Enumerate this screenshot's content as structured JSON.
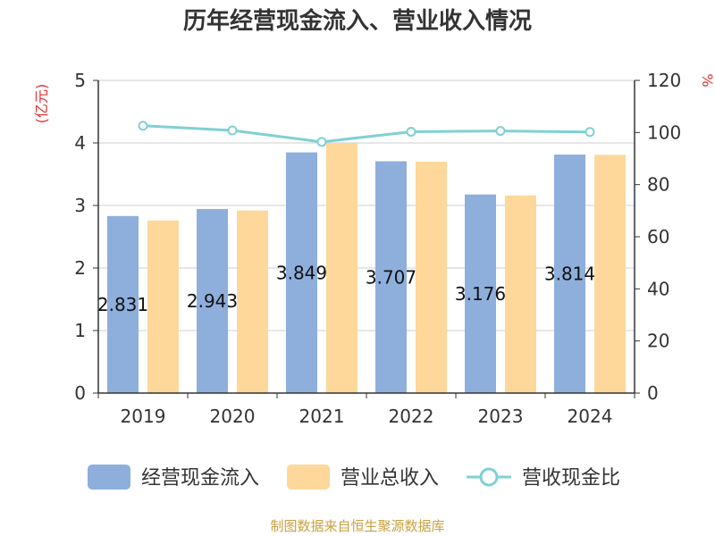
{
  "chart_data": {
    "type": "bar",
    "title": "历年经营现金流入、营业收入情况",
    "categories": [
      "2019",
      "2020",
      "2021",
      "2022",
      "2023",
      "2024"
    ],
    "left_axis": {
      "unit": "(亿元)",
      "ylim": [
        0,
        5
      ],
      "ticks": [
        0,
        1,
        2,
        3,
        4,
        5
      ]
    },
    "right_axis": {
      "unit": "%",
      "ylim": [
        0,
        120
      ],
      "ticks": [
        0,
        20,
        40,
        60,
        80,
        100,
        120
      ]
    },
    "series": [
      {
        "name": "经营现金流入",
        "type": "bar",
        "axis": "left",
        "color": "#8eafdc",
        "values": [
          2.831,
          2.943,
          3.849,
          3.707,
          3.176,
          3.814
        ],
        "labels": [
          "2.831",
          "2.943",
          "3.849",
          "3.707",
          "3.176",
          "3.814"
        ]
      },
      {
        "name": "营业总收入",
        "type": "bar",
        "axis": "left",
        "color": "#fdd89a",
        "values": [
          2.76,
          2.92,
          3.99,
          3.7,
          3.16,
          3.81
        ]
      },
      {
        "name": "营收现金比",
        "type": "line",
        "axis": "right",
        "color": "#7fd0d4",
        "values": [
          102.6,
          100.8,
          96.4,
          100.3,
          100.6,
          100.2
        ]
      }
    ],
    "grid": true,
    "legend_position": "bottom"
  },
  "source_note": "制图数据来自恒生聚源数据库"
}
